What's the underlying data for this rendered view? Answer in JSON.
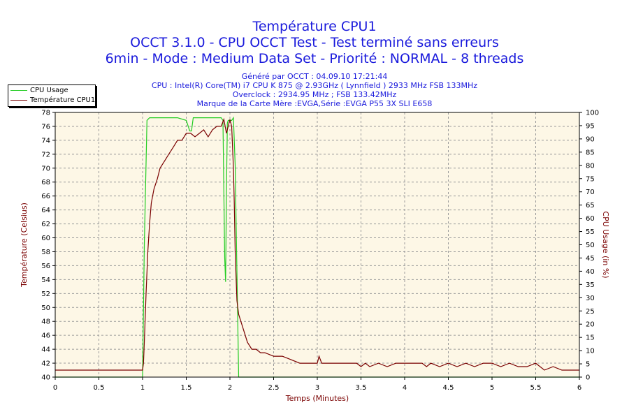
{
  "header": {
    "title1": "Température CPU1",
    "title2": "OCCT 3.1.0 - CPU OCCT Test - Test terminé sans erreurs",
    "title3": "6min - Mode : Medium Data Set - Priorité : NORMAL - 8 threads",
    "sub1": "Généré par OCCT : 04.09.10 17:21:44",
    "sub2": "CPU : Intel(R) Core(TM) i7 CPU K 875 @ 2.93GHz ( Lynnfield ) 2933 MHz FSB 133MHz",
    "sub3": "Overclock : 2934.95 MHz ; FSB 133.42MHz",
    "sub4": "Marque de la Carte Mère :EVGA,Série :EVGA P55 3X SLI E658"
  },
  "legend": {
    "cpu_usage": "CPU Usage",
    "temperature": "Température CPU1"
  },
  "colors": {
    "usage": "#22cc22",
    "temperature": "#7a0000",
    "title": "#1a1adc",
    "plot_bg": "#fdf7e6"
  },
  "chart_data": {
    "type": "line",
    "title": "Température CPU1",
    "xlabel": "Temps (Minutes)",
    "ylabel_left": "Température (Celsius)",
    "ylabel_right": "CPU Usage (in %)",
    "xlim": [
      0,
      6
    ],
    "ylim_left": [
      40,
      78
    ],
    "ylim_right": [
      0,
      100
    ],
    "xticks": [
      "0",
      "0.5",
      "1",
      "1.5",
      "2",
      "2.5",
      "3",
      "3.5",
      "4",
      "4.5",
      "5",
      "5.5",
      "6"
    ],
    "yticks_left": [
      "40",
      "42",
      "44",
      "46",
      "48",
      "50",
      "52",
      "54",
      "56",
      "58",
      "60",
      "62",
      "64",
      "66",
      "68",
      "70",
      "72",
      "74",
      "76",
      "78"
    ],
    "yticks_right": [
      "0",
      "5",
      "10",
      "15",
      "20",
      "25",
      "30",
      "35",
      "40",
      "45",
      "50",
      "55",
      "60",
      "65",
      "70",
      "75",
      "80",
      "85",
      "90",
      "95",
      "100"
    ],
    "series": [
      {
        "name": "CPU Usage",
        "axis": "right",
        "x": [
          0,
          0.98,
          1.0,
          1.02,
          1.05,
          1.08,
          1.12,
          1.2,
          1.3,
          1.4,
          1.5,
          1.54,
          1.56,
          1.58,
          1.62,
          1.7,
          1.8,
          1.88,
          1.9,
          1.92,
          1.93,
          1.94,
          1.95,
          1.96,
          1.97,
          1.98,
          2.0,
          2.01,
          2.02,
          2.04,
          2.06,
          2.1,
          2.5,
          3.0,
          3.5,
          4.0,
          4.5,
          5.0,
          5.5,
          6.0
        ],
        "y": [
          0,
          0,
          0,
          50,
          97,
          98,
          98,
          98,
          98,
          98,
          97,
          93,
          93,
          98,
          98,
          98,
          98,
          98,
          98,
          97,
          70,
          45,
          36,
          70,
          96,
          97,
          97,
          97,
          97,
          98,
          80,
          0,
          0,
          0,
          0,
          0,
          0,
          0,
          0,
          0
        ]
      },
      {
        "name": "Température CPU1",
        "axis": "left",
        "x": [
          0,
          0.98,
          1.0,
          1.01,
          1.02,
          1.04,
          1.06,
          1.08,
          1.1,
          1.13,
          1.17,
          1.2,
          1.25,
          1.3,
          1.35,
          1.4,
          1.45,
          1.5,
          1.55,
          1.6,
          1.65,
          1.7,
          1.75,
          1.8,
          1.85,
          1.9,
          1.93,
          1.96,
          1.98,
          2.0,
          2.02,
          2.04,
          2.05,
          2.06,
          2.08,
          2.1,
          2.15,
          2.2,
          2.25,
          2.3,
          2.35,
          2.4,
          2.5,
          2.6,
          2.7,
          2.8,
          2.9,
          3.0,
          3.02,
          3.05,
          3.1,
          3.2,
          3.3,
          3.4,
          3.45,
          3.5,
          3.55,
          3.6,
          3.7,
          3.8,
          3.9,
          4.0,
          4.1,
          4.2,
          4.25,
          4.3,
          4.4,
          4.5,
          4.6,
          4.7,
          4.8,
          4.9,
          5.0,
          5.1,
          5.2,
          5.3,
          5.4,
          5.5,
          5.6,
          5.7,
          5.8,
          5.9,
          6.0
        ],
        "y": [
          41,
          41,
          41,
          42,
          45,
          52,
          58,
          62,
          65,
          67,
          68.5,
          70,
          71,
          72,
          73,
          74,
          74,
          75,
          75,
          74.5,
          75,
          75.5,
          74.5,
          75.5,
          76,
          76,
          77,
          75,
          76,
          77,
          76,
          70,
          65,
          58,
          51,
          49,
          47,
          45,
          44,
          44,
          43.5,
          43.5,
          43,
          43,
          42.5,
          42,
          42,
          42,
          43,
          42,
          42,
          42,
          42,
          42,
          42,
          41.5,
          42,
          41.5,
          42,
          41.5,
          42,
          42,
          42,
          42,
          41.5,
          42,
          41.5,
          42,
          41.5,
          42,
          41.5,
          42,
          42,
          41.5,
          42,
          41.5,
          41.5,
          42,
          41,
          41.5,
          41,
          41,
          41
        ]
      }
    ]
  }
}
